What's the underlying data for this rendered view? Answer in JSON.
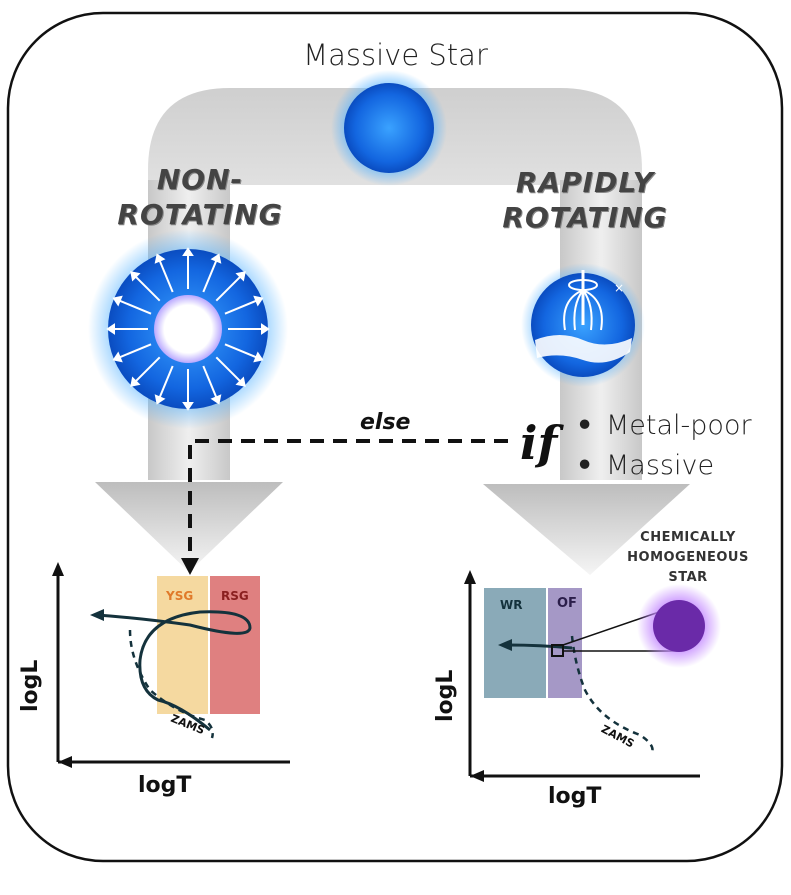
{
  "title": "Massive Star",
  "branches": {
    "left": "NON-\nROTATING",
    "left_line1": "NON-",
    "left_line2": "ROTATING",
    "right_line1": "RAPIDLY",
    "right_line2": "ROTATING"
  },
  "condition": {
    "if_label": "if",
    "else_label": "else",
    "items": [
      "Metal-poor",
      "Massive"
    ],
    "bullet": "•"
  },
  "chs_label": {
    "line1": "CHEMICALLY",
    "line2": "HOMOGENEOUS",
    "line3": "STAR"
  },
  "left_plot": {
    "ylabel": "logL",
    "xlabel": "logT",
    "track_label": "ZAMS",
    "band1": "YSG",
    "band2": "RSG"
  },
  "right_plot": {
    "ylabel": "logL",
    "xlabel": "logT",
    "track_label": "ZAMS",
    "band1": "WR",
    "band2": "OF"
  },
  "colors": {
    "ysg_band": "#f5d9a0",
    "rsg_band": "#df8080",
    "wr_band": "#8aaab8",
    "of_band": "#a598c6",
    "star_blue": "#1e6fe0",
    "chs_purple": "#6a2aa8",
    "track": "#14323c"
  }
}
